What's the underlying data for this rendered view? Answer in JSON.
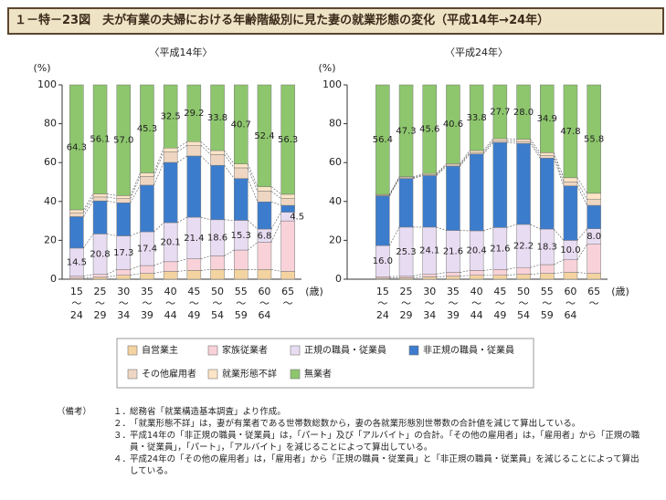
{
  "title": "１－特－23図　夫が有業の夫婦における年齢階級別に見た妻の就業形態の変化（平成14年→24年）",
  "chart_data": [
    {
      "type": "stacked_bar",
      "subtitle": "〈平成14年〉",
      "y_unit": "(%)",
      "x_unit": "(歳)",
      "categories": [
        [
          "15",
          "〜",
          "24"
        ],
        [
          "25",
          "〜",
          "29"
        ],
        [
          "30",
          "〜",
          "34"
        ],
        [
          "35",
          "〜",
          "39"
        ],
        [
          "40",
          "〜",
          "44"
        ],
        [
          "45",
          "〜",
          "49"
        ],
        [
          "50",
          "〜",
          "54"
        ],
        [
          "55",
          "〜",
          "59"
        ],
        [
          "60",
          "〜",
          "64"
        ],
        [
          "65",
          "〜"
        ]
      ],
      "ylim": [
        0,
        100
      ],
      "yticks": [
        0,
        20,
        40,
        60,
        80,
        100
      ],
      "series": [
        {
          "name": "自営業主",
          "color": "#f3d3a0",
          "values": [
            0.5,
            1.0,
            2.0,
            3.0,
            4.0,
            4.5,
            5.0,
            5.0,
            5.0,
            4.0
          ]
        },
        {
          "name": "家族従業者",
          "color": "#f8d2d8",
          "values": [
            1.0,
            1.5,
            3.0,
            4.0,
            5.0,
            6.0,
            7.0,
            10.0,
            14.0,
            26.0
          ]
        },
        {
          "name": "正規の職員・従業員",
          "color": "#e8dcf2",
          "values": [
            14.5,
            20.8,
            17.3,
            17.4,
            20.1,
            21.4,
            18.6,
            15.3,
            6.8,
            4.5
          ],
          "value_labels": [
            "14.5",
            "20.8",
            "17.3",
            "17.4",
            "20.1",
            "21.4",
            "18.6",
            "15.3",
            "6.8",
            "4.5"
          ]
        },
        {
          "name": "非正規の職員・従業員",
          "color": "#3c7ccc",
          "values": [
            16.2,
            17.0,
            17.0,
            24.0,
            31.0,
            31.5,
            28.0,
            21.5,
            14.0,
            3.5
          ]
        },
        {
          "name": "その他雇用者",
          "color": "#eed6c2",
          "values": [
            2.0,
            2.0,
            2.2,
            4.5,
            5.5,
            5.5,
            5.5,
            5.5,
            5.5,
            3.5
          ]
        },
        {
          "name": "就業形態不詳",
          "color": "#fde4c6",
          "values": [
            1.5,
            1.6,
            1.5,
            1.8,
            1.9,
            1.9,
            2.1,
            2.0,
            2.3,
            2.2
          ]
        },
        {
          "name": "無業者",
          "color": "#8dc66c",
          "values": [
            64.3,
            56.1,
            57.0,
            45.3,
            32.5,
            29.2,
            33.8,
            40.7,
            52.4,
            56.3
          ],
          "value_labels": [
            "64.3",
            "56.1",
            "57.0",
            "45.3",
            "32.5",
            "29.2",
            "33.8",
            "40.7",
            "52.4",
            "56.3"
          ]
        }
      ]
    },
    {
      "type": "stacked_bar",
      "subtitle": "〈平成24年〉",
      "y_unit": "(%)",
      "x_unit": "(歳)",
      "categories": [
        [
          "15",
          "〜",
          "24"
        ],
        [
          "25",
          "〜",
          "29"
        ],
        [
          "30",
          "〜",
          "34"
        ],
        [
          "35",
          "〜",
          "39"
        ],
        [
          "40",
          "〜",
          "44"
        ],
        [
          "45",
          "〜",
          "49"
        ],
        [
          "50",
          "〜",
          "54"
        ],
        [
          "55",
          "〜",
          "59"
        ],
        [
          "60",
          "〜",
          "64"
        ],
        [
          "65",
          "〜"
        ]
      ],
      "ylim": [
        0,
        100
      ],
      "yticks": [
        0,
        20,
        40,
        60,
        80,
        100
      ],
      "series": [
        {
          "name": "自営業主",
          "color": "#f3d3a0",
          "values": [
            0.5,
            0.7,
            1.2,
            1.5,
            2.0,
            2.0,
            2.5,
            3.0,
            3.5,
            3.0
          ]
        },
        {
          "name": "家族従業者",
          "color": "#f8d2d8",
          "values": [
            0.8,
            0.8,
            1.5,
            2.0,
            2.5,
            3.0,
            3.5,
            4.5,
            6.5,
            15.0
          ]
        },
        {
          "name": "正規の職員・従業員",
          "color": "#e8dcf2",
          "values": [
            16.0,
            25.3,
            24.1,
            21.6,
            20.4,
            21.6,
            22.2,
            18.3,
            10.0,
            8.0
          ],
          "value_labels": [
            "16.0",
            "25.3",
            "24.1",
            "21.6",
            "20.4",
            "21.6",
            "22.2",
            "18.3",
            "10.0",
            "8.0"
          ]
        },
        {
          "name": "非正規の職員・従業員",
          "color": "#3c7ccc",
          "values": [
            25.5,
            25.0,
            26.5,
            33.0,
            39.5,
            43.8,
            41.7,
            36.5,
            28.0,
            12.0
          ]
        },
        {
          "name": "その他雇用者",
          "color": "#eed6c2",
          "values": [
            0.4,
            0.4,
            0.5,
            0.6,
            0.8,
            0.9,
            1.0,
            1.3,
            2.0,
            3.0
          ]
        },
        {
          "name": "就業形態不詳",
          "color": "#fde4c6",
          "values": [
            0.4,
            0.5,
            0.6,
            0.7,
            1.0,
            1.0,
            1.1,
            1.5,
            2.2,
            3.2
          ]
        },
        {
          "name": "無業者",
          "color": "#8dc66c",
          "values": [
            56.4,
            47.3,
            45.6,
            40.6,
            33.8,
            27.7,
            28.0,
            34.9,
            47.8,
            55.8
          ],
          "value_labels": [
            "56.4",
            "47.3",
            "45.6",
            "40.6",
            "33.8",
            "27.7",
            "28.0",
            "34.9",
            "47.8",
            "55.8"
          ]
        }
      ]
    }
  ],
  "notes": {
    "label": "（備考）",
    "items": [
      {
        "num": "１．",
        "text": "総務省「就業構造基本調査」より作成。"
      },
      {
        "num": "２．",
        "text": "「就業形態不詳」は，妻が有業者である世帯数総数から，妻の各就業形態別世帯数の合計値を減じて算出している。"
      },
      {
        "num": "３．",
        "text": "平成14年の「非正規の職員・従業員」は，「パート」及び「アルバイト」の合計。「その他の雇用者」は，「雇用者」から「正規の職員・従業員」，「パート」，「アルバイト」を減じることによって算出している。"
      },
      {
        "num": "４．",
        "text": "平成24年の「その他の雇用者」は，「雇用者」から「正規の職員・従業員」と「非正規の職員・従業員」を減じることによって算出している。"
      }
    ]
  }
}
